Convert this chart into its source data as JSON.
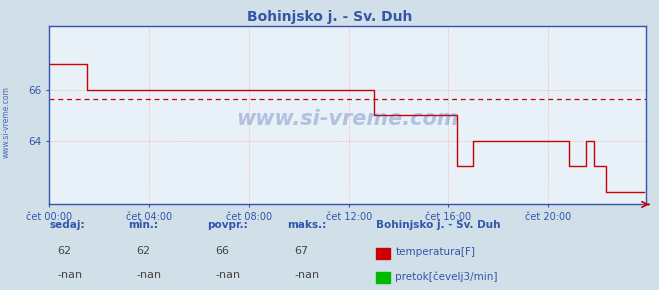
{
  "title": "Bohinjsko j. - Sv. Duh",
  "bg_color": "#d0dfe8",
  "plot_bg_color": "#e8f0f8",
  "grid_color": "#ffaaaa",
  "grid_style": ":",
  "avg_line_value": 65.65,
  "avg_line_color": "#cc0000",
  "avg_line_style": "--",
  "line_color": "#cc0000",
  "line_width": 1.0,
  "ylim": [
    61.5,
    68.5
  ],
  "yticks": [
    64,
    66
  ],
  "xlim": [
    0,
    287
  ],
  "xtick_positions": [
    0,
    48,
    96,
    144,
    192,
    240
  ],
  "xtick_labels": [
    "čet 00:00",
    "čet 04:00",
    "čet 08:00",
    "čet 12:00",
    "čet 16:00",
    "čet 20:00"
  ],
  "watermark": "www.si-vreme.com",
  "side_label": "www.si-vreme.com",
  "footer_labels": [
    "sedaj:",
    "min.:",
    "povpr.:",
    "maks.:"
  ],
  "footer_values": [
    "62",
    "62",
    "66",
    "67"
  ],
  "footer_nan_values": [
    "-nan",
    "-nan",
    "-nan",
    "-nan"
  ],
  "legend_station": "Bohinjsko j. - Sv. Duh",
  "legend_items": [
    {
      "label": "temperatura[F]",
      "color": "#cc0000"
    },
    {
      "label": "pretok[čevelj3/min]",
      "color": "#00bb00"
    }
  ],
  "temp_data": [
    67,
    67,
    67,
    67,
    67,
    67,
    67,
    67,
    67,
    67,
    67,
    67,
    67,
    67,
    67,
    67,
    67,
    67,
    66,
    66,
    66,
    66,
    66,
    66,
    66,
    66,
    66,
    66,
    66,
    66,
    66,
    66,
    66,
    66,
    66,
    66,
    66,
    66,
    66,
    66,
    66,
    66,
    66,
    66,
    66,
    66,
    66,
    66,
    66,
    66,
    66,
    66,
    66,
    66,
    66,
    66,
    66,
    66,
    66,
    66,
    66,
    66,
    66,
    66,
    66,
    66,
    66,
    66,
    66,
    66,
    66,
    66,
    66,
    66,
    66,
    66,
    66,
    66,
    66,
    66,
    66,
    66,
    66,
    66,
    66,
    66,
    66,
    66,
    66,
    66,
    66,
    66,
    66,
    66,
    66,
    66,
    66,
    66,
    66,
    66,
    66,
    66,
    66,
    66,
    66,
    66,
    66,
    66,
    66,
    66,
    66,
    66,
    66,
    66,
    66,
    66,
    66,
    66,
    66,
    66,
    66,
    66,
    66,
    66,
    66,
    66,
    66,
    66,
    66,
    66,
    66,
    66,
    66,
    66,
    66,
    66,
    66,
    66,
    66,
    66,
    66,
    66,
    66,
    66,
    66,
    66,
    66,
    66,
    66,
    66,
    66,
    66,
    66,
    66,
    66,
    66,
    65,
    65,
    65,
    65,
    65,
    65,
    65,
    65,
    65,
    65,
    65,
    65,
    65,
    65,
    65,
    65,
    65,
    65,
    65,
    65,
    65,
    65,
    65,
    65,
    65,
    65,
    65,
    65,
    65,
    65,
    65,
    65,
    65,
    65,
    65,
    65,
    65,
    65,
    65,
    65,
    63,
    63,
    63,
    63,
    63,
    63,
    63,
    63,
    64,
    64,
    64,
    64,
    64,
    64,
    64,
    64,
    64,
    64,
    64,
    64,
    64,
    64,
    64,
    64,
    64,
    64,
    64,
    64,
    64,
    64,
    64,
    64,
    64,
    64,
    64,
    64,
    64,
    64,
    64,
    64,
    64,
    64,
    64,
    64,
    64,
    64,
    64,
    64,
    64,
    64,
    64,
    64,
    64,
    64,
    63,
    63,
    63,
    63,
    63,
    63,
    63,
    63,
    64,
    64,
    64,
    64,
    63,
    63,
    63,
    63,
    63,
    63,
    62,
    62,
    62,
    62,
    62,
    62,
    62,
    62,
    62,
    62,
    62,
    62,
    62,
    62,
    62,
    62,
    62,
    62,
    62
  ]
}
